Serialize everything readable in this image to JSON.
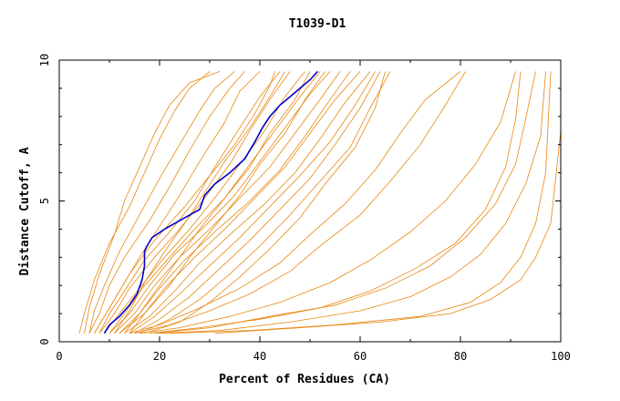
{
  "chart_data": {
    "type": "line",
    "title": "T1039-D1",
    "xlabel": "Percent of Residues (CA)",
    "ylabel": "Distance Cutoff, A",
    "xlim": [
      0,
      100
    ],
    "ylim": [
      0,
      10
    ],
    "xticks": [
      "0",
      "20",
      "40",
      "60",
      "80",
      "100"
    ],
    "yticks": [
      "0",
      "5",
      "10"
    ],
    "grid": false,
    "colors": {
      "models": "#e8870f",
      "highlight": "#0000cc"
    },
    "highlight_series": {
      "x": [
        9,
        10,
        12,
        14,
        15.5,
        16.5,
        17,
        17,
        17.5,
        18.5,
        21,
        24,
        28,
        29,
        31,
        34,
        37,
        39,
        40.5,
        42,
        44,
        46,
        48,
        50,
        51.5
      ],
      "y": [
        0.3,
        0.6,
        0.9,
        1.3,
        1.7,
        2.2,
        2.7,
        3.2,
        3.4,
        3.7,
        4.0,
        4.3,
        4.7,
        5.2,
        5.6,
        6.0,
        6.5,
        7.1,
        7.6,
        8.0,
        8.4,
        8.7,
        9.0,
        9.3,
        9.6
      ]
    },
    "series": [
      {
        "x": [
          4,
          5,
          7,
          10,
          14,
          17,
          20,
          23,
          26,
          30
        ],
        "y": [
          0.3,
          1.0,
          2.2,
          3.5,
          4.8,
          6.0,
          7.2,
          8.2,
          9.0,
          9.6
        ]
      },
      {
        "x": [
          5,
          6,
          8,
          11,
          13,
          16,
          19,
          22,
          26,
          32
        ],
        "y": [
          0.3,
          1.2,
          2.4,
          3.8,
          5.0,
          6.2,
          7.4,
          8.4,
          9.2,
          9.6
        ]
      },
      {
        "x": [
          6,
          7,
          9,
          12,
          16,
          20,
          24,
          28,
          31,
          35
        ],
        "y": [
          0.3,
          1.1,
          2.0,
          3.2,
          4.5,
          5.8,
          7.0,
          8.2,
          9.0,
          9.6
        ]
      },
      {
        "x": [
          6,
          8,
          10,
          13,
          18,
          22,
          26,
          30,
          34,
          37
        ],
        "y": [
          0.3,
          1.0,
          2.0,
          3.0,
          4.3,
          5.5,
          6.8,
          8.0,
          9.0,
          9.6
        ]
      },
      {
        "x": [
          7,
          9,
          12,
          16,
          20,
          24,
          28,
          33,
          36,
          40
        ],
        "y": [
          0.3,
          0.9,
          1.8,
          3.0,
          4.1,
          5.2,
          6.4,
          7.8,
          8.9,
          9.6
        ]
      },
      {
        "x": [
          8,
          10,
          13,
          17,
          22,
          27,
          31,
          36,
          40,
          44
        ],
        "y": [
          0.3,
          1.0,
          1.8,
          2.9,
          3.9,
          5.0,
          6.2,
          7.6,
          8.7,
          9.6
        ]
      },
      {
        "x": [
          8,
          11,
          14,
          19,
          24,
          29,
          34,
          38,
          42,
          46
        ],
        "y": [
          0.3,
          1.0,
          1.9,
          3.0,
          4.0,
          5.1,
          6.3,
          7.5,
          8.6,
          9.6
        ]
      },
      {
        "x": [
          9,
          12,
          16,
          21,
          26,
          31,
          36,
          41,
          45,
          49
        ],
        "y": [
          0.3,
          1.0,
          1.9,
          3.0,
          4.0,
          5.1,
          6.3,
          7.5,
          8.7,
          9.6
        ]
      },
      {
        "x": [
          10,
          13,
          17,
          22,
          27,
          33,
          38,
          43,
          48,
          52
        ],
        "y": [
          0.3,
          1.0,
          2.0,
          3.0,
          4.0,
          5.1,
          6.3,
          7.5,
          8.7,
          9.6
        ]
      },
      {
        "x": [
          10,
          14,
          18,
          23,
          29,
          35,
          40,
          45,
          50,
          54
        ],
        "y": [
          0.3,
          1.0,
          2.0,
          3.1,
          4.1,
          5.2,
          6.4,
          7.6,
          8.8,
          9.6
        ]
      },
      {
        "x": [
          11,
          15,
          19,
          24,
          30,
          36,
          42,
          47,
          52,
          56
        ],
        "y": [
          0.3,
          1.0,
          2.0,
          3.0,
          4.0,
          5.1,
          6.2,
          7.4,
          8.6,
          9.6
        ]
      },
      {
        "x": [
          12,
          16,
          20,
          25,
          31,
          38,
          44,
          49,
          54,
          58
        ],
        "y": [
          0.3,
          1.0,
          1.9,
          2.9,
          3.9,
          5.0,
          6.1,
          7.3,
          8.6,
          9.6
        ]
      },
      {
        "x": [
          12,
          17,
          21,
          27,
          33,
          39,
          45,
          50,
          55,
          60
        ],
        "y": [
          0.3,
          1.0,
          1.9,
          3.0,
          4.0,
          5.1,
          6.2,
          7.4,
          8.6,
          9.6
        ]
      },
      {
        "x": [
          13,
          18,
          23,
          28,
          34,
          41,
          47,
          52,
          57,
          62
        ],
        "y": [
          0.3,
          0.9,
          1.8,
          2.8,
          3.8,
          4.9,
          6.0,
          7.2,
          8.5,
          9.6
        ]
      },
      {
        "x": [
          14,
          19,
          24,
          30,
          36,
          42,
          48,
          54,
          59,
          63
        ],
        "y": [
          0.3,
          0.9,
          1.7,
          2.7,
          3.7,
          4.8,
          5.9,
          7.1,
          8.4,
          9.6
        ]
      },
      {
        "x": [
          15,
          20,
          26,
          32,
          38,
          44,
          50,
          55,
          60,
          64
        ],
        "y": [
          0.3,
          0.8,
          1.6,
          2.6,
          3.6,
          4.7,
          5.8,
          7.0,
          8.3,
          9.6
        ]
      },
      {
        "x": [
          11,
          14,
          17,
          21,
          25,
          29,
          33,
          38,
          42,
          45
        ],
        "y": [
          0.3,
          1.1,
          2.1,
          3.2,
          4.2,
          5.3,
          6.4,
          7.6,
          8.7,
          9.6
        ]
      },
      {
        "x": [
          13,
          16,
          20,
          24,
          28,
          33,
          38,
          42,
          47,
          50
        ],
        "y": [
          0.3,
          1.0,
          2.0,
          3.0,
          4.0,
          5.1,
          6.2,
          7.4,
          8.6,
          9.6
        ]
      },
      {
        "x": [
          14,
          17,
          22,
          26,
          31,
          36,
          40,
          45,
          49,
          53
        ],
        "y": [
          0.3,
          1.0,
          2.0,
          3.0,
          4.1,
          5.2,
          6.3,
          7.4,
          8.6,
          9.6
        ]
      },
      {
        "x": [
          7,
          10,
          14,
          19,
          25,
          30,
          35,
          39,
          42,
          43
        ],
        "y": [
          0.3,
          1.2,
          2.4,
          3.6,
          4.8,
          5.9,
          7.0,
          8.1,
          9.1,
          9.6
        ]
      },
      {
        "x": [
          16,
          22,
          28,
          34,
          40,
          46,
          52,
          58,
          62,
          66
        ],
        "y": [
          0.3,
          0.8,
          1.5,
          2.4,
          3.4,
          4.5,
          5.7,
          6.9,
          8.3,
          9.6
        ]
      },
      {
        "x": [
          17,
          24,
          30,
          36,
          42,
          48,
          53,
          59,
          63,
          65
        ],
        "y": [
          0.3,
          0.7,
          1.4,
          2.3,
          3.3,
          4.4,
          5.6,
          6.9,
          8.3,
          9.6
        ]
      },
      {
        "x": [
          14,
          20,
          28,
          36,
          44,
          50,
          57,
          63,
          68,
          73,
          80
        ],
        "y": [
          0.3,
          0.6,
          1.2,
          1.9,
          2.8,
          3.8,
          4.9,
          6.1,
          7.4,
          8.6,
          9.6
        ]
      },
      {
        "x": [
          15,
          22,
          30,
          38,
          46,
          52,
          60,
          66,
          72,
          77,
          81
        ],
        "y": [
          0.3,
          0.6,
          1.1,
          1.7,
          2.5,
          3.4,
          4.5,
          5.7,
          7.0,
          8.4,
          9.6
        ]
      },
      {
        "x": [
          16,
          24,
          34,
          44,
          54,
          62,
          70,
          77,
          83,
          88,
          91
        ],
        "y": [
          0.3,
          0.5,
          0.9,
          1.4,
          2.1,
          2.9,
          3.9,
          5.0,
          6.3,
          7.8,
          9.6
        ]
      },
      {
        "x": [
          18,
          28,
          40,
          52,
          62,
          71,
          79,
          85,
          89,
          91,
          92
        ],
        "y": [
          0.3,
          0.5,
          0.8,
          1.2,
          1.8,
          2.6,
          3.5,
          4.7,
          6.2,
          7.9,
          9.6
        ]
      },
      {
        "x": [
          20,
          32,
          46,
          60,
          70,
          78,
          84,
          89,
          93,
          96,
          97
        ],
        "y": [
          0.3,
          0.4,
          0.7,
          1.1,
          1.6,
          2.3,
          3.1,
          4.2,
          5.6,
          7.3,
          9.6
        ]
      },
      {
        "x": [
          22,
          38,
          55,
          72,
          82,
          88,
          92,
          95,
          97,
          98
        ],
        "y": [
          0.3,
          0.4,
          0.6,
          0.9,
          1.4,
          2.1,
          3.0,
          4.2,
          6.0,
          9.6
        ]
      },
      {
        "x": [
          31,
          48,
          64,
          78,
          86,
          92,
          95,
          98,
          99,
          100,
          100
        ],
        "y": [
          0.3,
          0.5,
          0.7,
          1.0,
          1.5,
          2.2,
          3.0,
          4.2,
          5.8,
          7.5,
          9.6
        ]
      },
      {
        "x": [
          19,
          30,
          42,
          55,
          65,
          74,
          81,
          87,
          91,
          93,
          95
        ],
        "y": [
          0.3,
          0.5,
          0.9,
          1.3,
          1.9,
          2.7,
          3.7,
          4.9,
          6.3,
          7.9,
          9.6
        ]
      }
    ]
  }
}
